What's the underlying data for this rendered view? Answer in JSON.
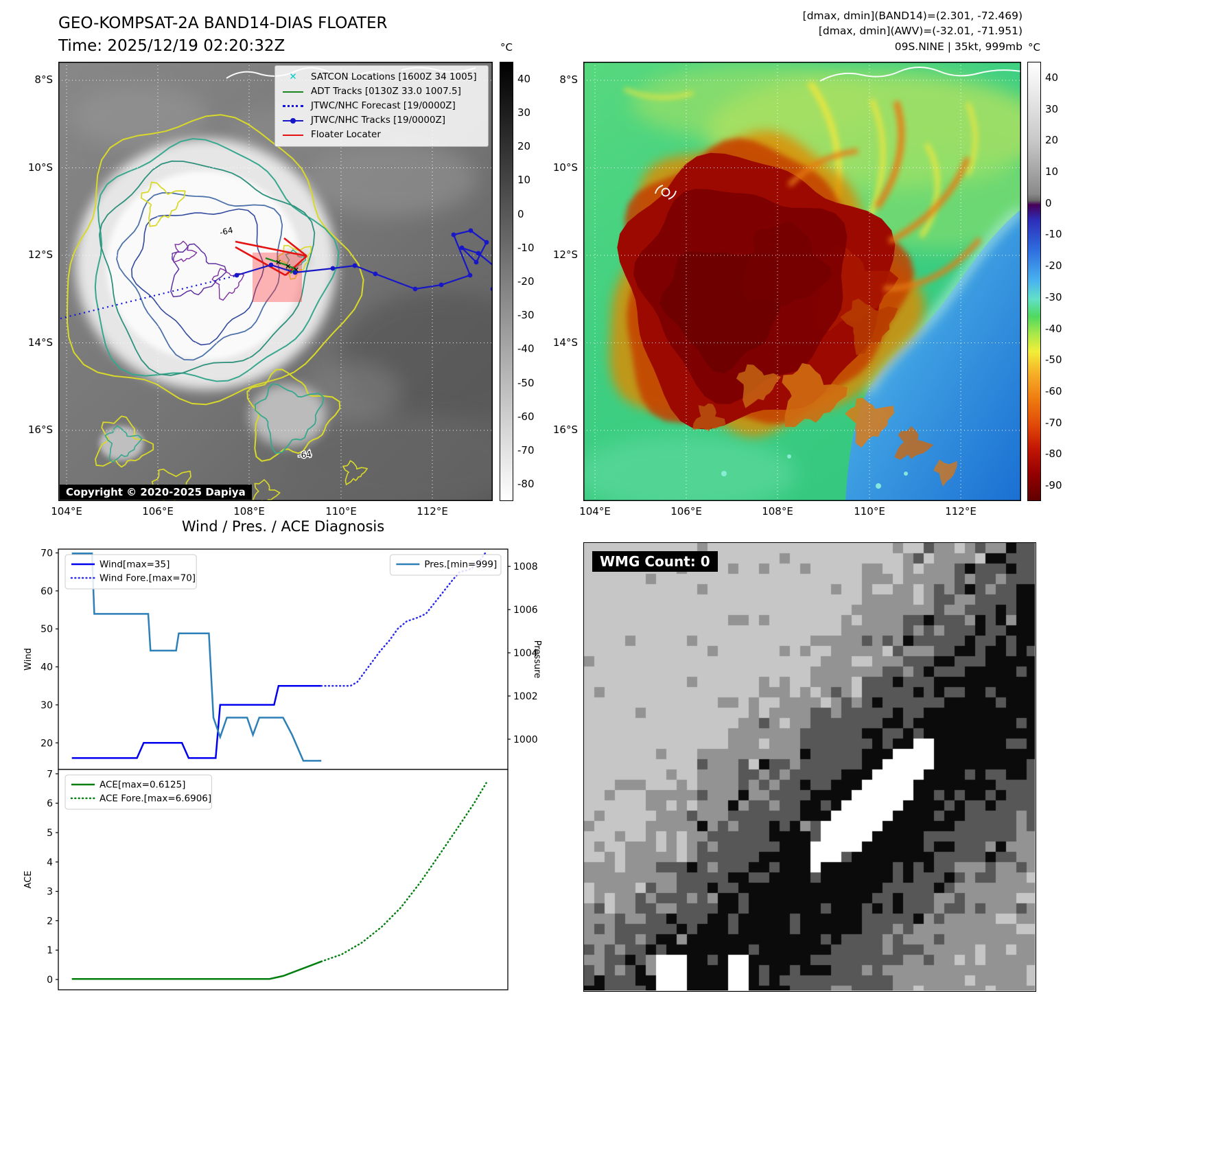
{
  "header": {
    "title_line1": "GEO-KOMPSAT-2A BAND14-DIAS FLOATER",
    "title_line2": "Time: 2025/12/19 02:20:32Z",
    "info_line1": "[dmax, dmin](BAND14)=(2.301, -72.469)",
    "info_line2": "[dmax, dmin](AWV)=(-32.01, -71.951)",
    "info_line3": "09S.NINE | 35kt, 999mb"
  },
  "band14_map": {
    "legend": [
      {
        "label": "SATCON Locations [1600Z 34 1005]",
        "marker": "x",
        "color": "#00cccc"
      },
      {
        "label": "ADT Tracks [0130Z 33.0 1007.5]",
        "marker": "line",
        "color": "#18871f"
      },
      {
        "label": "JTWC/NHC Forecast [19/0000Z]",
        "marker": "dotted",
        "color": "#1212dd"
      },
      {
        "label": "JTWC/NHC Tracks [19/0000Z]",
        "marker": "line-dot",
        "color": "#1717c8"
      },
      {
        "label": "Floater Locater",
        "marker": "line",
        "color": "#e51212"
      }
    ],
    "contour_labels": [
      "-64",
      "-64"
    ],
    "copyright": "Copyright © 2020-2025 Dapiya",
    "x_ticks": [
      "104°E",
      "106°E",
      "108°E",
      "110°E",
      "112°E"
    ],
    "y_ticks": [
      "8°S",
      "10°S",
      "12°S",
      "14°S",
      "16°S"
    ],
    "colorbar": {
      "unit": "°C",
      "ticks": [
        40,
        30,
        20,
        10,
        0,
        -10,
        -20,
        -30,
        -40,
        -50,
        -60,
        -70,
        -80
      ]
    }
  },
  "awv_map": {
    "x_ticks": [
      "104°E",
      "106°E",
      "108°E",
      "110°E",
      "112°E"
    ],
    "y_ticks": [
      "8°S",
      "10°S",
      "12°S",
      "14°S",
      "16°S"
    ],
    "colorbar": {
      "unit": "°C",
      "ticks": [
        40,
        30,
        20,
        10,
        0,
        -10,
        -20,
        -30,
        -40,
        -50,
        -60,
        -70,
        -80,
        -90
      ]
    }
  },
  "wmg": {
    "label": "WMG Count: 0",
    "palette": {
      "light": "#c6c6c6",
      "mid": "#939393",
      "dark": "#575757",
      "black": "#0b0b0b",
      "white": "#ffffff"
    }
  },
  "chart_data": [
    {
      "type": "line",
      "title": "Wind / Pres. / ACE Diagnosis",
      "xlabel": "",
      "ylabel": "Wind",
      "y2label": "Pressure",
      "xlim": [
        0,
        1
      ],
      "ylim": [
        13,
        71
      ],
      "y2lim": [
        998.6,
        1008.8
      ],
      "yticks": [
        20,
        30,
        40,
        50,
        60,
        70
      ],
      "y2ticks": [
        1000,
        1002,
        1004,
        1006,
        1008
      ],
      "series": [
        {
          "name": "Wind[max=35]",
          "axis": "left",
          "style": "solid",
          "color": "#0000ee",
          "points": [
            [
              0.03,
              16
            ],
            [
              0.175,
              16
            ],
            [
              0.19,
              20
            ],
            [
              0.275,
              20
            ],
            [
              0.29,
              16
            ],
            [
              0.35,
              16
            ],
            [
              0.36,
              30
            ],
            [
              0.48,
              30
            ],
            [
              0.49,
              35
            ],
            [
              0.585,
              35
            ]
          ]
        },
        {
          "name": "Wind Fore.[max=70]",
          "axis": "left",
          "style": "dotted",
          "color": "#2a2aee",
          "points": [
            [
              0.585,
              35
            ],
            [
              0.65,
              35
            ],
            [
              0.665,
              36
            ],
            [
              0.69,
              40
            ],
            [
              0.715,
              44
            ],
            [
              0.737,
              47
            ],
            [
              0.755,
              50
            ],
            [
              0.775,
              52
            ],
            [
              0.8,
              53
            ],
            [
              0.818,
              54
            ],
            [
              0.838,
              57
            ],
            [
              0.858,
              60
            ],
            [
              0.878,
              63
            ],
            [
              0.893,
              65
            ],
            [
              0.912,
              65.5
            ],
            [
              0.932,
              67
            ],
            [
              0.95,
              70
            ]
          ]
        },
        {
          "name": "Pres.[min=999]",
          "axis": "right",
          "style": "solid",
          "color": "#2d7fb8",
          "points": [
            [
              0.03,
              1008.6
            ],
            [
              0.075,
              1008.6
            ],
            [
              0.08,
              1005.8
            ],
            [
              0.2,
              1005.8
            ],
            [
              0.205,
              1004.1
            ],
            [
              0.262,
              1004.1
            ],
            [
              0.268,
              1004.9
            ],
            [
              0.335,
              1004.9
            ],
            [
              0.345,
              1001.0
            ],
            [
              0.36,
              1000.1
            ],
            [
              0.375,
              1001.0
            ],
            [
              0.42,
              1001.0
            ],
            [
              0.433,
              1000.2
            ],
            [
              0.447,
              1001.0
            ],
            [
              0.5,
              1001.0
            ],
            [
              0.52,
              1000.2
            ],
            [
              0.545,
              999.0
            ],
            [
              0.585,
              999.0
            ]
          ]
        }
      ],
      "legends": [
        {
          "anchor": "upper-left",
          "items": [
            0,
            1
          ]
        },
        {
          "anchor": "upper-right",
          "items": [
            2
          ]
        }
      ]
    },
    {
      "type": "line",
      "title": "",
      "xlabel": "",
      "ylabel": "ACE",
      "xlim": [
        0,
        1
      ],
      "ylim": [
        -0.35,
        7.15
      ],
      "yticks": [
        0,
        1,
        2,
        3,
        4,
        5,
        6,
        7
      ],
      "series": [
        {
          "name": "ACE[max=0.6125]",
          "axis": "left",
          "style": "solid",
          "color": "#007f0e",
          "points": [
            [
              0.03,
              0.02
            ],
            [
              0.47,
              0.02
            ],
            [
              0.5,
              0.12
            ],
            [
              0.585,
              0.6125
            ]
          ]
        },
        {
          "name": "ACE Fore.[max=6.6906]",
          "axis": "left",
          "style": "dotted",
          "color": "#007f0e",
          "points": [
            [
              0.585,
              0.6125
            ],
            [
              0.63,
              0.85
            ],
            [
              0.675,
              1.25
            ],
            [
              0.72,
              1.8
            ],
            [
              0.762,
              2.45
            ],
            [
              0.805,
              3.3
            ],
            [
              0.848,
              4.25
            ],
            [
              0.89,
              5.2
            ],
            [
              0.925,
              6.0
            ],
            [
              0.952,
              6.69
            ]
          ]
        }
      ],
      "legends": [
        {
          "anchor": "upper-left",
          "items": [
            0,
            1
          ]
        }
      ]
    }
  ]
}
